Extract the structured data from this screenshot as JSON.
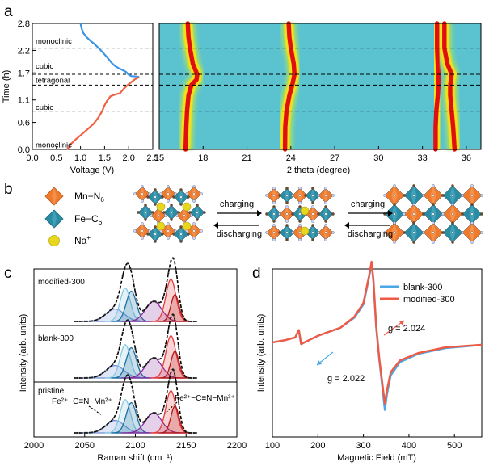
{
  "panel_labels": {
    "a": "a",
    "b": "b",
    "c": "c",
    "d": "d"
  },
  "colors": {
    "charge_curve": "#3a93e4",
    "discharge_curve": "#ef6244",
    "heatmap_bg": "#5bc3cf",
    "heat_peak": "#e01010",
    "heat_mid": "#f7e019",
    "heat_low": "#a2dd6c",
    "mn_orange": "#f07a2c",
    "fe_teal": "#2a8ca4",
    "na_yellow": "#e8d81c",
    "blank_blue": "#4aa8e6",
    "modified_red": "#f05a44"
  },
  "chart_data": [
    {
      "id": "a-left",
      "type": "line",
      "xlabel": "Voltage (V)",
      "ylabel": "Time (h)",
      "xlim": [
        0.0,
        2.5
      ],
      "ylim": [
        0.0,
        2.8
      ],
      "xticks": [
        "0.0",
        "0.5",
        "1.0",
        "1.5",
        "2.0",
        "2.5"
      ],
      "yticks": [
        "0.0",
        "0.6",
        "1.1",
        "1.7",
        "2.2",
        "2.8"
      ],
      "phase_labels": [
        {
          "text": "monoclinic",
          "time": 2.42
        },
        {
          "text": "cubic",
          "time": 1.87
        },
        {
          "text": "tetragonal",
          "time": 1.55
        },
        {
          "text": "cubic",
          "time": 0.95
        },
        {
          "text": "monoclinic",
          "time": 0.12
        }
      ],
      "dashed_times": [
        2.25,
        1.67,
        1.43,
        0.85
      ],
      "series": [
        {
          "role": "charge",
          "points": [
            [
              1.0,
              2.8
            ],
            [
              1.02,
              2.7
            ],
            [
              1.05,
              2.6
            ],
            [
              1.12,
              2.5
            ],
            [
              1.2,
              2.42
            ],
            [
              1.28,
              2.35
            ],
            [
              1.35,
              2.28
            ],
            [
              1.45,
              2.17
            ],
            [
              1.55,
              2.05
            ],
            [
              1.65,
              1.92
            ],
            [
              1.72,
              1.85
            ],
            [
              1.8,
              1.8
            ],
            [
              1.88,
              1.76
            ],
            [
              1.95,
              1.72
            ],
            [
              1.99,
              1.67
            ],
            [
              2.05,
              1.63
            ],
            [
              2.15,
              1.62
            ],
            [
              2.22,
              1.61
            ]
          ]
        },
        {
          "role": "discharge",
          "points": [
            [
              2.22,
              1.61
            ],
            [
              2.12,
              1.55
            ],
            [
              2.0,
              1.45
            ],
            [
              1.9,
              1.35
            ],
            [
              1.82,
              1.25
            ],
            [
              1.72,
              1.22
            ],
            [
              1.62,
              1.18
            ],
            [
              1.55,
              1.08
            ],
            [
              1.5,
              0.98
            ],
            [
              1.45,
              0.85
            ],
            [
              1.38,
              0.72
            ],
            [
              1.28,
              0.58
            ],
            [
              1.15,
              0.45
            ],
            [
              1.02,
              0.33
            ],
            [
              0.9,
              0.22
            ],
            [
              0.8,
              0.12
            ],
            [
              0.75,
              0.04
            ],
            [
              0.72,
              0.0
            ]
          ]
        }
      ]
    },
    {
      "id": "a-right",
      "type": "heatmap",
      "xlabel": "2 theta (degree)",
      "xlim": [
        15,
        37
      ],
      "ylim": [
        0.0,
        2.8
      ],
      "xticks": [
        "15",
        "18",
        "21",
        "24",
        "27",
        "30",
        "33",
        "36"
      ],
      "dashed_times": [
        2.25,
        1.67,
        1.43,
        0.85
      ],
      "peaks": [
        {
          "center_points": [
            [
              0.0,
              16.8
            ],
            [
              0.5,
              16.85
            ],
            [
              0.85,
              16.9
            ],
            [
              1.2,
              17.0
            ],
            [
              1.43,
              17.2
            ],
            [
              1.55,
              17.55
            ],
            [
              1.67,
              17.6
            ],
            [
              1.9,
              17.3
            ],
            [
              2.25,
              17.1
            ],
            [
              2.5,
              17.0
            ],
            [
              2.8,
              16.95
            ]
          ],
          "width": 0.3
        },
        {
          "center_points": [
            [
              0.0,
              23.6
            ],
            [
              0.5,
              23.62
            ],
            [
              0.85,
              23.7
            ],
            [
              1.2,
              23.9
            ],
            [
              1.43,
              24.1
            ],
            [
              1.67,
              24.25
            ],
            [
              1.9,
              24.2
            ],
            [
              2.25,
              24.0
            ],
            [
              2.5,
              23.9
            ],
            [
              2.8,
              23.85
            ]
          ],
          "width": 0.3
        },
        {
          "center_points": [
            [
              0.0,
              33.9
            ],
            [
              0.5,
              33.9
            ],
            [
              0.85,
              33.95
            ],
            [
              1.2,
              34.05
            ],
            [
              1.43,
              34.1
            ],
            [
              1.67,
              34.1
            ],
            [
              1.9,
              34.05
            ],
            [
              2.25,
              34.0
            ],
            [
              2.5,
              34.0
            ],
            [
              2.8,
              34.0
            ]
          ],
          "width": 0.3
        },
        {
          "center_points": [
            [
              0.0,
              35.2
            ],
            [
              0.5,
              35.1
            ],
            [
              0.85,
              35.0
            ],
            [
              1.2,
              34.9
            ],
            [
              1.43,
              34.9
            ],
            [
              1.67,
              35.0
            ],
            [
              1.9,
              34.7
            ],
            [
              2.25,
              34.5
            ],
            [
              2.5,
              34.5
            ],
            [
              2.8,
              34.5
            ]
          ],
          "width": 0.3
        }
      ]
    },
    {
      "id": "c",
      "type": "line",
      "xlabel": "Raman shift (cm⁻¹)",
      "ylabel": "Intensity (arb. units)",
      "xlim": [
        2000,
        2200
      ],
      "xticks": [
        "2000",
        "2050",
        "2100",
        "2150",
        "2200"
      ],
      "stacks": [
        {
          "name": "modified-300"
        },
        {
          "name": "blank-300"
        },
        {
          "name": "pristine"
        }
      ],
      "components": [
        {
          "center": 2080,
          "width": 9,
          "height": 0.28,
          "color": "#6f8ed8"
        },
        {
          "center": 2090,
          "width": 5,
          "height": 0.75,
          "color": "#89c8e0"
        },
        {
          "center": 2096,
          "width": 5,
          "height": 0.68,
          "color": "#1d6fa0"
        },
        {
          "center": 2118,
          "width": 8,
          "height": 0.45,
          "color": "#8a2a9a"
        },
        {
          "center": 2135,
          "width": 5,
          "height": 0.95,
          "color": "#e83a3a"
        },
        {
          "center": 2139,
          "width": 4,
          "height": 0.6,
          "color": "#b01818"
        }
      ],
      "annotations": {
        "left": "Fe²⁺−C≡N−Mn²⁺",
        "right": "Fe²⁺−C≡N−Mn³⁺"
      }
    },
    {
      "id": "d",
      "type": "line",
      "xlabel": "Magnetic Field (mT)",
      "ylabel": "Intensity (arb. units)",
      "xlim": [
        100,
        560
      ],
      "xticks": [
        "100",
        "200",
        "300",
        "400",
        "500"
      ],
      "legend": {
        "position": "top-right",
        "entries": [
          "blank-300",
          "modified-300"
        ]
      },
      "g_labels": [
        {
          "text": "g = 2.024",
          "series": "modified-300"
        },
        {
          "text": "g = 2.022",
          "series": "blank-300"
        }
      ],
      "series": [
        {
          "name": "blank-300",
          "points": [
            [
              100,
              0.02
            ],
            [
              130,
              0.05
            ],
            [
              150,
              0.08
            ],
            [
              158,
              0.17
            ],
            [
              163,
              0.0
            ],
            [
              200,
              0.1
            ],
            [
              250,
              0.2
            ],
            [
              280,
              0.32
            ],
            [
              300,
              0.48
            ],
            [
              312,
              0.8
            ],
            [
              318,
              0.98
            ],
            [
              322,
              0.75
            ],
            [
              328,
              0.2
            ],
            [
              335,
              -0.2
            ],
            [
              342,
              -0.55
            ],
            [
              347,
              -0.8
            ],
            [
              352,
              -0.6
            ],
            [
              360,
              -0.38
            ],
            [
              380,
              -0.22
            ],
            [
              420,
              -0.12
            ],
            [
              480,
              -0.05
            ],
            [
              560,
              -0.01
            ]
          ]
        },
        {
          "name": "modified-300",
          "points": [
            [
              100,
              0.02
            ],
            [
              130,
              0.05
            ],
            [
              150,
              0.08
            ],
            [
              158,
              0.17
            ],
            [
              163,
              0.0
            ],
            [
              200,
              0.1
            ],
            [
              250,
              0.2
            ],
            [
              280,
              0.33
            ],
            [
              300,
              0.5
            ],
            [
              312,
              0.82
            ],
            [
              318,
              1.0
            ],
            [
              322,
              0.78
            ],
            [
              328,
              0.22
            ],
            [
              335,
              -0.18
            ],
            [
              342,
              -0.5
            ],
            [
              347,
              -0.72
            ],
            [
              352,
              -0.55
            ],
            [
              360,
              -0.34
            ],
            [
              380,
              -0.2
            ],
            [
              420,
              -0.11
            ],
            [
              480,
              -0.04
            ],
            [
              560,
              -0.01
            ]
          ]
        }
      ]
    }
  ],
  "panel_b": {
    "legend": [
      {
        "text": "Mn−N",
        "sub": "6",
        "icon": "orange-octahedron"
      },
      {
        "text": "Fe−C",
        "sub": "6",
        "icon": "teal-octahedron"
      },
      {
        "text": "Na",
        "sup": "+",
        "icon": "yellow-sphere"
      }
    ],
    "arrows": {
      "charging_1": "charging",
      "discharging_1": "discharging",
      "charging_2": "charging",
      "discharging_2": "discharging"
    }
  }
}
